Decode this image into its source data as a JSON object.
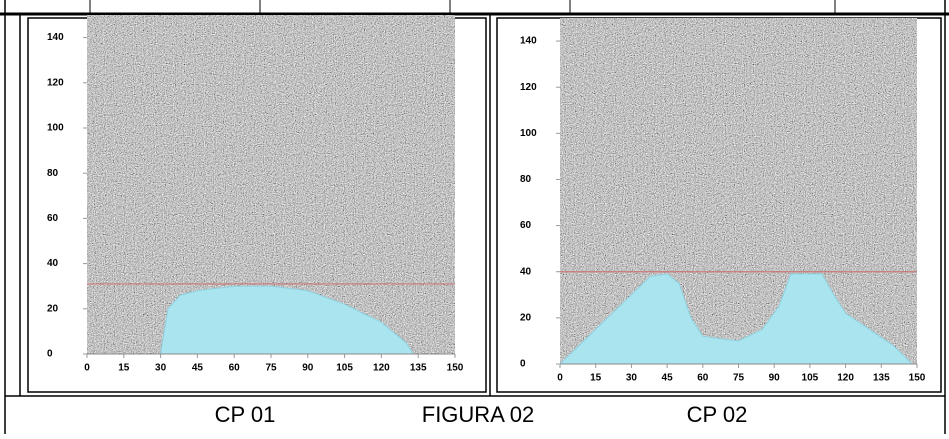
{
  "chart_data": [
    {
      "type": "area",
      "title": "CP 01",
      "x": [
        30,
        33,
        38,
        45,
        60,
        75,
        90,
        105,
        120,
        130,
        133
      ],
      "values": [
        0,
        20,
        26,
        28,
        30,
        30,
        28,
        22,
        14,
        5,
        0
      ],
      "color": "#a9e4ef",
      "xlim": [
        0,
        150
      ],
      "ylim": [
        0,
        150
      ],
      "xticks": [
        0,
        15,
        30,
        45,
        60,
        75,
        90,
        105,
        120,
        135,
        150
      ],
      "yticks": [
        0,
        20,
        40,
        60,
        80,
        100,
        120,
        140
      ],
      "reference_line": 31,
      "reference_color": "#c87a7a"
    },
    {
      "type": "area",
      "title": "CP 02",
      "x": [
        0,
        15,
        30,
        38,
        45,
        50,
        55,
        60,
        67,
        75,
        85,
        92,
        97,
        110,
        115,
        120,
        130,
        140,
        148
      ],
      "values": [
        0,
        15,
        30,
        38,
        39,
        35,
        20,
        12,
        11,
        10,
        15,
        25,
        39,
        39,
        30,
        22,
        15,
        8,
        0
      ],
      "color": "#a9e4ef",
      "xlim": [
        0,
        150
      ],
      "ylim": [
        0,
        150
      ],
      "xticks": [
        0,
        15,
        30,
        45,
        60,
        75,
        90,
        105,
        120,
        135,
        150
      ],
      "yticks": [
        0,
        20,
        40,
        60,
        80,
        100,
        120,
        140
      ],
      "reference_line": 40,
      "reference_color": "#c87a7a"
    }
  ],
  "caption": "FIGURA 02"
}
